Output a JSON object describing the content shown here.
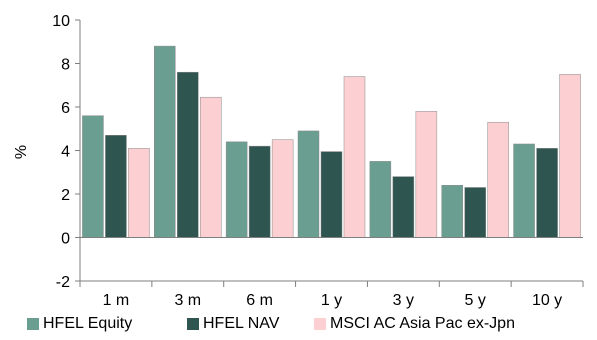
{
  "chart_data": {
    "type": "bar",
    "categories": [
      "1 m",
      "3 m",
      "6 m",
      "1 y",
      "3 y",
      "5 y",
      "10 y"
    ],
    "series": [
      {
        "name": "HFEL Equity",
        "color": "#6a9e91",
        "values": [
          5.6,
          8.8,
          4.4,
          4.9,
          3.5,
          2.4,
          4.3
        ]
      },
      {
        "name": "HFEL NAV",
        "color": "#2f5550",
        "values": [
          4.7,
          7.6,
          4.2,
          3.95,
          2.8,
          2.3,
          4.1
        ]
      },
      {
        "name": "MSCI AC Asia Pac ex-Jpn",
        "color": "#fcd0d3",
        "values": [
          4.1,
          6.45,
          4.5,
          7.4,
          5.8,
          5.3,
          7.5
        ]
      }
    ],
    "ylabel": "%",
    "ylim": [
      -2,
      10
    ],
    "yticks": [
      "-2",
      "0",
      "2",
      "4",
      "6",
      "8",
      "10"
    ],
    "grid": false,
    "legend": "bottom"
  }
}
